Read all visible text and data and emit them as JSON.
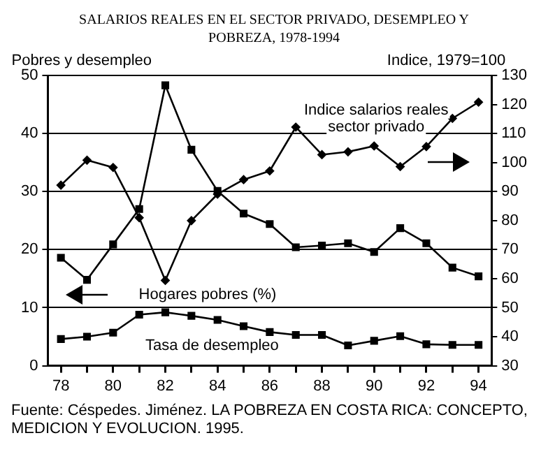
{
  "chart_data": {
    "type": "line",
    "title": "SALARIOS REALES EN EL SECTOR PRIVADO, DESEMPLEO Y POBREZA, 1978-1994",
    "ylabel": "Pobres y desempleo",
    "y2label": "Indice, 1979=100",
    "x": [
      78,
      79,
      80,
      81,
      82,
      83,
      84,
      85,
      86,
      87,
      88,
      89,
      90,
      91,
      92,
      93,
      94
    ],
    "series": [
      {
        "name": "Indice salarios reales sector privado",
        "color": "#000000",
        "axis": "y2",
        "marker": "diamond",
        "values": [
          92.2,
          100.8,
          98.3,
          81,
          59.4,
          80,
          89.1,
          94.1,
          97.1,
          112.2,
          102.7,
          103.7,
          105.7,
          98.6,
          105.5,
          115.2,
          120.8
        ]
      },
      {
        "name": "Hogares pobres (%)",
        "color": "#000000",
        "marker": "square",
        "values": [
          18.6,
          14.8,
          20.9,
          27,
          48.3,
          37.2,
          30.1,
          26.2,
          24.4,
          20.4,
          20.7,
          21.1,
          19.6,
          23.7,
          21.1,
          16.9,
          15.4
        ]
      },
      {
        "name": "Tasa de desempleo",
        "color": "#000000",
        "marker": "square",
        "values": [
          4.6,
          5,
          5.7,
          8.8,
          9.2,
          8.6,
          7.9,
          6.8,
          5.8,
          5.3,
          5.3,
          3.5,
          4.3,
          5.1,
          3.7,
          3.6,
          3.6
        ]
      }
    ],
    "xlim": [
      77.5,
      94.5
    ],
    "xticks": [
      78,
      {
        "value": 79,
        "label": null
      },
      80,
      {
        "value": 81,
        "label": null
      },
      82,
      {
        "value": 83,
        "label": null
      },
      84,
      {
        "value": 85,
        "label": null
      },
      86,
      {
        "value": 87,
        "label": null
      },
      88,
      {
        "value": 89,
        "label": null
      },
      90,
      {
        "value": 91,
        "label": null
      },
      92,
      {
        "value": 93,
        "label": null
      },
      94
    ],
    "ylim": [
      0,
      50
    ],
    "yticks": [
      0,
      10,
      20,
      30,
      40,
      50
    ],
    "y2lim": [
      30,
      130
    ],
    "y2ticks": [
      30,
      40,
      50,
      60,
      70,
      80,
      90,
      100,
      110,
      120,
      130
    ],
    "grid": "y",
    "line_style": "solid",
    "annotations": [
      "Fuente: Céspedes. Jiménez. LA POBREZA EN COSTA RICA: CONCEPTO, MEDICION Y EVOLUCION. 1995."
    ]
  }
}
